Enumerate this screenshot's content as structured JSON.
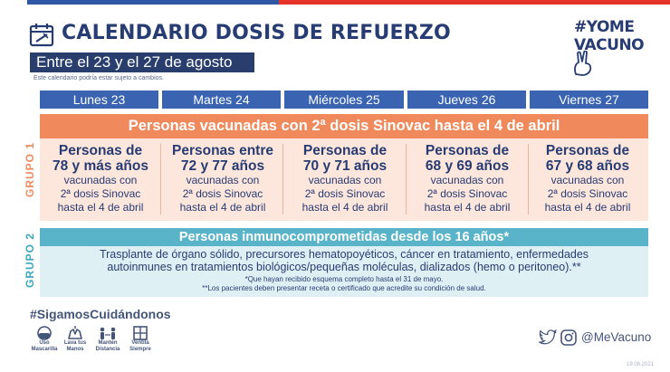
{
  "header": {
    "title": "CALENDARIO DOSIS DE REFUERZO",
    "date_range": "Entre el 23 y el 27 de agosto",
    "disclaimer": "Este calendario podría estar sujeto a cambios.",
    "logo_line1": "#YOME",
    "logo_line2": "VACUNO",
    "calendar_icon": "calendar-syringe-icon"
  },
  "days": [
    "Lunes 23",
    "Martes 24",
    "Miércoles 25",
    "Jueves 26",
    "Viernes 27"
  ],
  "group1": {
    "label": "GRUPO 1",
    "header": "Personas vacunadas con 2ª dosis Sinovac hasta el 4 de abril",
    "cells": [
      {
        "l1": "Personas de",
        "l2": "78 y más años",
        "l3": "vacunadas con",
        "l4": "2ª dosis Sinovac",
        "l5": "hasta el 4 de abril"
      },
      {
        "l1": "Personas entre",
        "l2": "72 y 77 años",
        "l3": "vacunadas con",
        "l4": "2ª dosis Sinovac",
        "l5": "hasta el 4 de abril"
      },
      {
        "l1": "Personas de",
        "l2": "70 y 71 años",
        "l3": "vacunadas con",
        "l4": "2ª dosis Sinovac",
        "l5": "hasta el 4 de abril"
      },
      {
        "l1": "Personas de",
        "l2": "68 y 69 años",
        "l3": "vacunadas con",
        "l4": "2ª dosis Sinovac",
        "l5": "hasta el 4 de abril"
      },
      {
        "l1": "Personas de",
        "l2": "67 y 68 años",
        "l3": "vacunadas con",
        "l4": "2ª dosis Sinovac",
        "l5": "hasta el 4 de abril"
      }
    ]
  },
  "group2": {
    "label": "GRUPO 2",
    "header": "Personas inmunocomprometidas desde los 16 años*",
    "text_line1": "Trasplante de órgano sólido, precursores hematopoyéticos, cáncer en tratamiento, enfermedades",
    "text_line2": "autoinmunes en tratamientos biológicos/pequeñas moléculas, dializados (hemo o peritoneo).**",
    "note1": "*Que hayan recibido esquema completo hasta el 31 de mayo.",
    "note2": "**Los pacientes deben presentar receta o certificado que acredite su condición de salud."
  },
  "footer": {
    "hashtag": "#SigamosCuidándonos",
    "tips": [
      {
        "icon": "mask-icon",
        "line1": "Uso",
        "line2": "Mascarilla"
      },
      {
        "icon": "wash-hands-icon",
        "line1": "Lava tus",
        "line2": "Manos"
      },
      {
        "icon": "distance-icon",
        "line1": "Mantén",
        "line2": "Distancia"
      },
      {
        "icon": "ventilate-icon",
        "line1": "Ventila",
        "line2": "Siempre"
      }
    ],
    "handle": "@MeVacuno",
    "stamp": "19.08.2021"
  },
  "colors": {
    "navy": "#273c73",
    "day_blue": "#3a64b2",
    "group1_orange": "#f08a5d",
    "group1_bg": "#fde6dc",
    "group2_teal": "#59b4c9",
    "group2_bg": "#dff0f5",
    "flag_blue": "#2f57a4",
    "flag_red": "#e5332a"
  }
}
